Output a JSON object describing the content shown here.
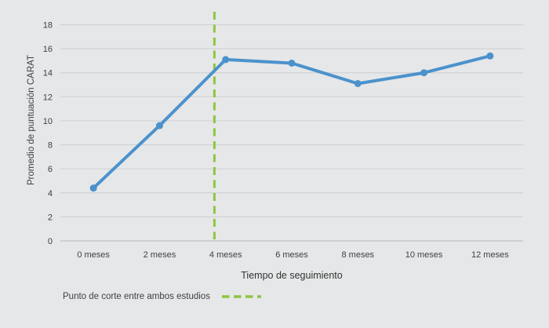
{
  "chart_data": {
    "type": "line",
    "title": "",
    "categories": [
      "0 meses",
      "2 meses",
      "4 meses",
      "6 meses",
      "8 meses",
      "10 meses",
      "12 meses"
    ],
    "series": [
      {
        "name": "Promedio de puntuación CARAT",
        "values": [
          4.4,
          9.6,
          15.1,
          14.8,
          13.1,
          14.0,
          15.4
        ],
        "color": "#4b92cc",
        "marker": "circle",
        "line_width": 4
      }
    ],
    "xlabel": "Tiempo de seguimiento",
    "ylabel": "Promedio de puntuación CARAT",
    "ylim": [
      0,
      18
    ],
    "yticks": [
      0,
      2,
      4,
      6,
      8,
      10,
      12,
      14,
      16,
      18
    ],
    "grid": "horizontal",
    "legend_position": "bottom-left",
    "annotations": {
      "cutoff_line": {
        "label": "Punto de corte entre ambos estudios",
        "orientation": "vertical",
        "x_category_position": 1.83,
        "between_categories": [
          "2 meses",
          "4 meses"
        ],
        "color": "#8dc63f",
        "line_style": "dashed"
      }
    },
    "colors": {
      "background": "#e6e7e8",
      "gridline": "#d1d2d4",
      "axis_line": "#bfc0c2",
      "text": "#3f3f3f"
    }
  }
}
